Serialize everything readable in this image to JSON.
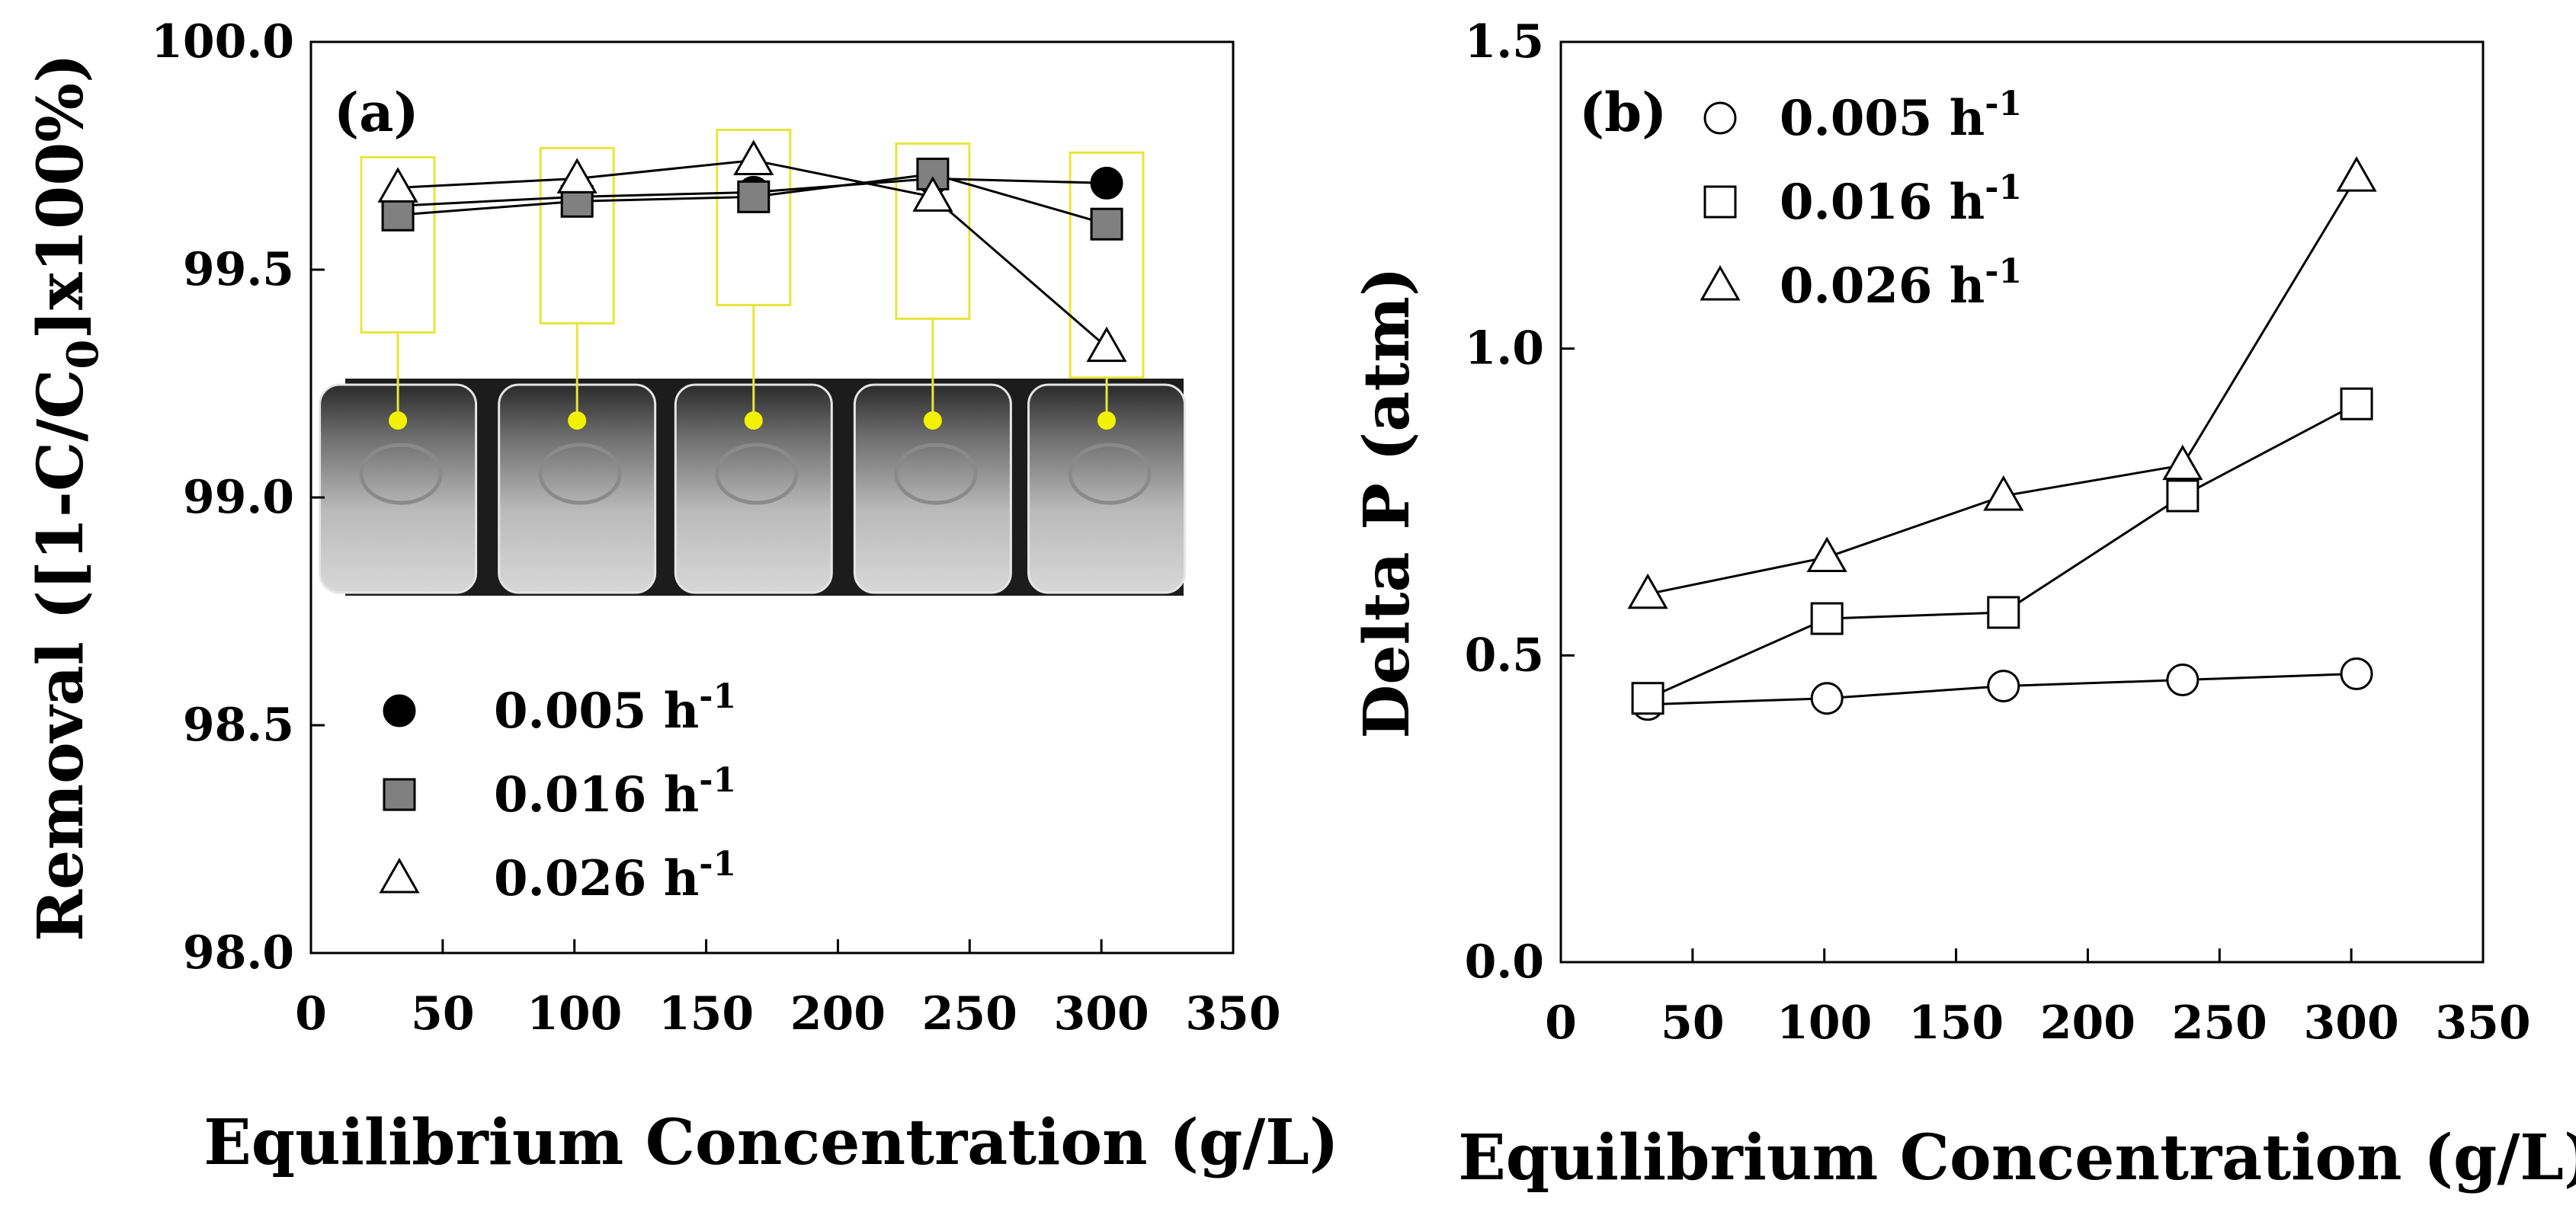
{
  "figure": {
    "panels": [
      {
        "tag": "(a)"
      },
      {
        "tag": "(b)"
      }
    ]
  },
  "legend_shared": [
    {
      "rate": "0.005 h",
      "sup": "-1"
    },
    {
      "rate": "0.016 h",
      "sup": "-1"
    },
    {
      "rate": "0.026 h",
      "sup": "-1"
    }
  ],
  "chart_data": [
    {
      "type": "line",
      "panel": "(a)",
      "title": "",
      "xlabel": "Equilibrium Concentration (g/L)",
      "ylabel": "Removal ([1-C/C0]x100%)",
      "xlim": [
        0,
        350
      ],
      "ylim": [
        98.0,
        100.0
      ],
      "xticks": [
        "0",
        "50",
        "100",
        "150",
        "200",
        "250",
        "300",
        "350"
      ],
      "yticks": [
        "98.0",
        "98.5",
        "99.0",
        "99.5",
        "100.0"
      ],
      "legend_position": "bottom-left",
      "grid": false,
      "inset": "photo of five vials with callout boxes to data points",
      "series": [
        {
          "name": "0.005 h-1",
          "marker": "filled-circle",
          "color": "#000000",
          "x": [
            33,
            101,
            168,
            236,
            302
          ],
          "y": [
            99.64,
            99.66,
            99.67,
            99.7,
            99.69
          ]
        },
        {
          "name": "0.016 h-1",
          "marker": "filled-square",
          "color": "#808080",
          "x": [
            33,
            101,
            168,
            236,
            302
          ],
          "y": [
            99.62,
            99.65,
            99.66,
            99.71,
            99.6
          ]
        },
        {
          "name": "0.026 h-1",
          "marker": "open-triangle",
          "color": "#ffffff",
          "x": [
            33,
            101,
            168,
            236,
            302
          ],
          "y": [
            99.68,
            99.7,
            99.74,
            99.66,
            99.33
          ]
        }
      ]
    },
    {
      "type": "line",
      "panel": "(b)",
      "title": "",
      "xlabel": "Equilibrium Concentration (g/L)",
      "ylabel": "Delta P (atm)",
      "xlim": [
        0,
        350
      ],
      "ylim": [
        0.0,
        1.5
      ],
      "xticks": [
        "0",
        "50",
        "100",
        "150",
        "200",
        "250",
        "300",
        "350"
      ],
      "yticks": [
        "0.0",
        "0.5",
        "1.0",
        "1.5"
      ],
      "legend_position": "top-left",
      "grid": false,
      "series": [
        {
          "name": "0.005 h-1",
          "marker": "open-circle",
          "x": [
            33,
            101,
            168,
            236,
            302
          ],
          "y": [
            0.42,
            0.43,
            0.45,
            0.46,
            0.47
          ]
        },
        {
          "name": "0.016 h-1",
          "marker": "open-square",
          "x": [
            33,
            101,
            168,
            236,
            302
          ],
          "y": [
            0.43,
            0.56,
            0.57,
            0.76,
            0.91
          ]
        },
        {
          "name": "0.026 h-1",
          "marker": "open-triangle",
          "x": [
            33,
            101,
            168,
            236,
            302
          ],
          "y": [
            0.6,
            0.66,
            0.76,
            0.81,
            1.28
          ]
        }
      ]
    }
  ]
}
